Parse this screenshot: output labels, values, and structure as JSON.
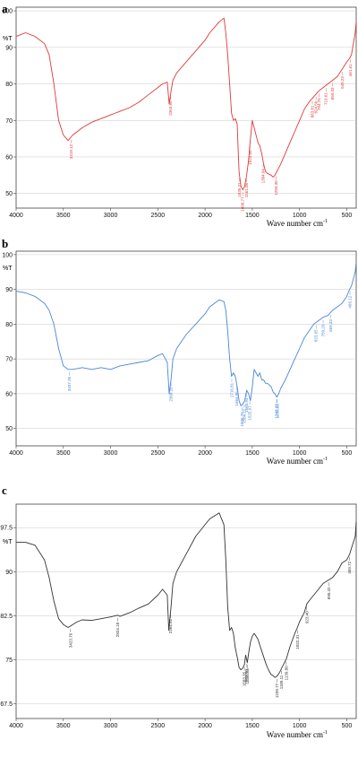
{
  "chart_data": [
    {
      "type": "line",
      "panel_label": "a",
      "ylabel": "%T",
      "xlabel": "Wave number cm",
      "xlabel_sup": "-1",
      "color": "#e0393a",
      "xlim": [
        4000,
        400
      ],
      "ylim": [
        46,
        101
      ],
      "xticks": [
        4000,
        3500,
        3000,
        2500,
        2000,
        1500,
        1000,
        500
      ],
      "yticks": [
        50,
        60,
        70,
        80,
        90,
        100
      ],
      "ytick_labels": [
        "50",
        "60",
        "70",
        "80",
        "90",
        "100"
      ],
      "series": [
        {
          "x": [
            4000,
            3900,
            3800,
            3700,
            3650,
            3600,
            3550,
            3500,
            3450,
            3400,
            3350,
            3300,
            3200,
            3100,
            3000,
            2900,
            2800,
            2700,
            2600,
            2500,
            2450,
            2400,
            2380,
            2360,
            2340,
            2300,
            2200,
            2100,
            2000,
            1950,
            1900,
            1850,
            1800,
            1780,
            1760,
            1740,
            1720,
            1700,
            1680,
            1660,
            1650,
            1640,
            1620,
            1600,
            1580,
            1560,
            1540,
            1520,
            1500,
            1480,
            1460,
            1440,
            1420,
            1400,
            1380,
            1360,
            1340,
            1300,
            1280,
            1260,
            1240,
            1200,
            1150,
            1100,
            1050,
            1000,
            950,
            900,
            850,
            800,
            750,
            700,
            650,
            600,
            550,
            500,
            470,
            450,
            430,
            410,
            400
          ],
          "y": [
            93,
            94,
            93,
            91,
            88,
            80,
            70,
            66,
            64.5,
            66,
            67,
            68,
            69.5,
            70.5,
            71.5,
            72.5,
            73.5,
            75,
            77,
            79,
            80,
            80.5,
            74.5,
            78,
            81,
            83,
            86,
            89,
            92,
            94,
            95.5,
            97,
            98,
            94,
            88,
            80,
            72,
            70,
            70.5,
            69,
            62,
            56,
            52,
            51,
            52,
            55,
            59,
            65,
            70,
            68,
            66,
            64,
            63,
            61,
            58,
            56,
            55.5,
            55,
            54.5,
            55,
            56,
            58,
            61,
            64,
            67,
            70,
            73,
            75,
            76.5,
            78,
            79,
            80,
            81,
            82,
            84,
            86,
            87,
            88,
            91,
            94,
            97
          ]
        }
      ],
      "annotations": [
        "3419.12",
        "2363.89",
        "1635.21",
        "1600.77",
        "1561.08",
        "1523.60",
        "1384.94",
        "1250.30",
        "863.81",
        "824.50",
        "794.75",
        "719.61",
        "650.33",
        "549.23",
        "461.61"
      ]
    },
    {
      "type": "line",
      "panel_label": "b",
      "ylabel": "%T",
      "xlabel": "Wave number cm",
      "xlabel_sup": "-1",
      "color": "#4a86d8",
      "xlim": [
        4000,
        400
      ],
      "ylim": [
        45,
        101
      ],
      "xticks": [
        4000,
        3500,
        3000,
        2500,
        2000,
        1500,
        1000,
        500
      ],
      "yticks": [
        50,
        60,
        70,
        80,
        90,
        100
      ],
      "ytick_labels": [
        "50",
        "60",
        "70",
        "80",
        "90",
        "100"
      ],
      "series": [
        {
          "x": [
            4000,
            3900,
            3800,
            3700,
            3650,
            3600,
            3550,
            3500,
            3450,
            3400,
            3300,
            3200,
            3100,
            3000,
            2900,
            2800,
            2700,
            2600,
            2500,
            2450,
            2400,
            2380,
            2360,
            2340,
            2300,
            2200,
            2100,
            2000,
            1950,
            1900,
            1850,
            1800,
            1780,
            1760,
            1740,
            1720,
            1700,
            1680,
            1660,
            1640,
            1620,
            1600,
            1580,
            1560,
            1540,
            1520,
            1500,
            1480,
            1460,
            1440,
            1420,
            1400,
            1380,
            1360,
            1340,
            1300,
            1280,
            1260,
            1240,
            1220,
            1200,
            1150,
            1100,
            1050,
            1000,
            950,
            900,
            850,
            800,
            750,
            700,
            650,
            600,
            550,
            500,
            470,
            450,
            430,
            410,
            400
          ],
          "y": [
            89.5,
            89,
            88,
            86,
            84,
            80,
            73,
            68,
            67,
            67,
            67.5,
            67,
            67.5,
            67,
            68,
            68.5,
            69,
            69.5,
            71,
            71.5,
            69,
            60,
            64,
            70,
            73,
            77,
            80,
            83,
            85,
            86,
            87,
            86.5,
            84,
            78,
            70,
            65,
            66,
            65,
            62,
            58,
            56.5,
            57,
            58,
            61,
            60,
            58,
            62,
            67,
            66,
            65,
            66,
            64,
            64,
            63,
            63,
            62,
            60.5,
            60,
            59,
            60,
            61.5,
            64,
            67,
            70,
            73,
            76,
            78,
            80,
            81,
            82,
            82.5,
            84,
            85,
            86,
            88,
            90,
            91,
            93,
            95,
            98
          ]
        }
      ],
      "annotations": [
        "3437.35",
        "2360.18",
        "1716.81",
        "1664.95",
        "1606.76",
        "1584.72",
        "1560.94",
        "1525.97",
        "1243.33",
        "1235.65",
        "823.65",
        "750.23",
        "669.33",
        "466.12"
      ]
    },
    {
      "type": "line",
      "panel_label": "c",
      "ylabel": "%T",
      "xlabel": "Wave number cm",
      "xlabel_sup": "-1",
      "color": "#333333",
      "xlim": [
        4000,
        400
      ],
      "ylim": [
        65,
        101.5
      ],
      "xticks": [
        4000,
        3500,
        3000,
        2500,
        2000,
        1500,
        1000,
        500
      ],
      "yticks": [
        67.5,
        75,
        82.5,
        90,
        97.5
      ],
      "ytick_labels": [
        "67.5",
        "75",
        "82.5",
        "90",
        "97.5"
      ],
      "series": [
        {
          "x": [
            4000,
            3900,
            3800,
            3700,
            3650,
            3600,
            3550,
            3500,
            3450,
            3400,
            3350,
            3300,
            3200,
            3100,
            3000,
            2924,
            2900,
            2800,
            2700,
            2600,
            2500,
            2450,
            2400,
            2384,
            2360,
            2340,
            2300,
            2200,
            2100,
            2000,
            1950,
            1900,
            1850,
            1800,
            1780,
            1760,
            1740,
            1720,
            1700,
            1680,
            1660,
            1640,
            1620,
            1600,
            1583,
            1570,
            1553,
            1540,
            1520,
            1500,
            1480,
            1460,
            1440,
            1420,
            1400,
            1380,
            1360,
            1340,
            1320,
            1300,
            1280,
            1260,
            1240,
            1220,
            1200,
            1189,
            1160,
            1139,
            1100,
            1050,
            1022,
            1000,
            950,
            923,
            900,
            850,
            800,
            750,
            700,
            650,
            600,
            550,
            500,
            469,
            450,
            430,
            410,
            400
          ],
          "y": [
            95,
            95,
            94.5,
            92,
            89,
            85,
            82,
            81,
            80.5,
            81,
            81.5,
            81.8,
            81.7,
            82,
            82.3,
            82.6,
            82.4,
            83,
            83.8,
            84.5,
            86,
            87,
            86,
            80,
            84,
            88,
            90,
            93,
            96,
            98,
            99,
            99.5,
            100,
            98,
            92,
            84,
            80,
            80.5,
            79.5,
            77,
            75.5,
            73.7,
            73.3,
            73.6,
            74.2,
            75.8,
            74.5,
            76,
            78,
            79,
            79.5,
            79,
            78.5,
            77.5,
            76.5,
            75.5,
            74.5,
            73.7,
            73,
            72.5,
            72.3,
            72,
            72.2,
            72.6,
            73.2,
            73.6,
            74.5,
            75.2,
            77.3,
            79.5,
            80.5,
            81.5,
            83,
            84.5,
            85,
            86,
            87,
            88,
            88.5,
            89,
            90,
            91.5,
            92,
            93,
            94,
            95,
            96,
            98.5
          ]
        }
      ],
      "annotations": [
        "3423.76",
        "2924.18",
        "2364.92",
        "1583.35",
        "1556.61",
        "1553.50",
        "1239.77",
        "1189.11",
        "1139.80",
        "1022.31",
        "923.40",
        "690.32",
        "469.72"
      ]
    }
  ]
}
